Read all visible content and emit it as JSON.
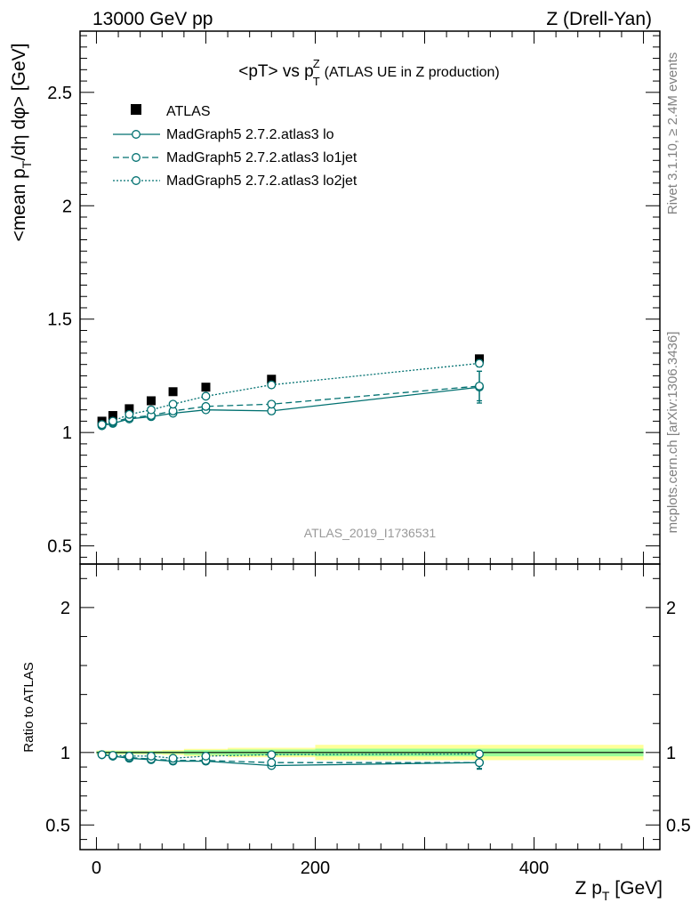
{
  "header": {
    "left": "13000 GeV pp",
    "right": "Z (Drell-Yan)"
  },
  "side": {
    "rivet": "Rivet 3.1.10, ≥ 2.4M events",
    "mcplots": "mcplots.cern.ch [arXiv:1306.3436]"
  },
  "chart_data": {
    "type": "line",
    "title": "<pT> vs p_T^Z (ATLAS UE in Z production)",
    "title_main": "<pT> vs p",
    "title_sup": "Z",
    "title_sub": "T",
    "title_paren": "(ATLAS UE in Z production)",
    "watermark": "ATLAS_2019_I1736531",
    "ylabel": "<mean p_T/dη dφ> [GeV]",
    "ylabel_pre": "<mean p",
    "ylabel_sub": "T",
    "ylabel_post": "/dη dφ> [GeV]",
    "xlabel": "Z p_T [GeV]",
    "xlabel_pre": "Z p",
    "xlabel_sub": "T",
    "xlabel_post": " [GeV]",
    "ratio_ylabel": "Ratio to ATLAS",
    "xlim": [
      -15,
      515
    ],
    "ylim": [
      0.42,
      2.77
    ],
    "ratio_ylim": [
      0.33,
      2.3
    ],
    "x_ticks": [
      0,
      200,
      400
    ],
    "x_tick_labels": [
      "0",
      "200",
      "400"
    ],
    "y_ticks": [
      0.5,
      1,
      1.5,
      2,
      2.5
    ],
    "y_tick_labels": [
      "0.5",
      "1",
      "1.5",
      "2",
      "2.5"
    ],
    "ratio_ticks": [
      0.5,
      1,
      2
    ],
    "ratio_tick_labels": [
      "0.5",
      "1",
      "2"
    ],
    "legend_position": "top-left",
    "data": {
      "name": "ATLAS",
      "color": "#000000",
      "x": [
        5,
        15,
        30,
        50,
        70,
        100,
        160,
        350
      ],
      "y": [
        1.05,
        1.075,
        1.105,
        1.14,
        1.18,
        1.2,
        1.235,
        1.325
      ],
      "bins": [
        [
          0,
          10
        ],
        [
          10,
          20
        ],
        [
          20,
          40
        ],
        [
          40,
          60
        ],
        [
          60,
          80
        ],
        [
          80,
          120
        ],
        [
          120,
          200
        ],
        [
          200,
          500
        ]
      ],
      "band_inner": [
        0.01,
        0.01,
        0.01,
        0.01,
        0.01,
        0.02,
        0.025,
        0.035
      ],
      "band_outer": [
        0.015,
        0.015,
        0.015,
        0.015,
        0.02,
        0.03,
        0.04,
        0.07
      ]
    },
    "series": [
      {
        "name": "MadGraph5 2.7.2.atlas3 lo",
        "color": "#007070",
        "dash": "",
        "x": [
          5,
          15,
          30,
          50,
          70,
          100,
          160,
          350
        ],
        "y": [
          1.03,
          1.04,
          1.06,
          1.07,
          1.085,
          1.1,
          1.095,
          1.2
        ],
        "err": [
          0,
          0,
          0,
          0,
          0,
          0,
          0,
          0.07
        ],
        "ratio": [
          0.985,
          0.975,
          0.96,
          0.95,
          0.94,
          0.94,
          0.91,
          0.93
        ],
        "ratio_err": [
          0,
          0,
          0,
          0,
          0,
          0,
          0.015,
          0.04
        ]
      },
      {
        "name": "MadGraph5 2.7.2.atlas3 lo1jet",
        "color": "#007070",
        "dash": "7,4",
        "x": [
          5,
          15,
          30,
          50,
          70,
          100,
          160,
          350
        ],
        "y": [
          1.03,
          1.045,
          1.065,
          1.075,
          1.095,
          1.115,
          1.125,
          1.205
        ],
        "err": [
          0,
          0,
          0,
          0,
          0,
          0,
          0,
          0.065
        ],
        "ratio": [
          0.985,
          0.975,
          0.965,
          0.955,
          0.945,
          0.945,
          0.93,
          0.93
        ],
        "ratio_err": [
          0,
          0,
          0,
          0,
          0,
          0,
          0.015,
          0.045
        ]
      },
      {
        "name": "MadGraph5 2.7.2.atlas3 lo2jet",
        "color": "#007070",
        "dash": "2,2",
        "x": [
          5,
          15,
          30,
          50,
          70,
          100,
          160,
          350
        ],
        "y": [
          1.035,
          1.05,
          1.08,
          1.1,
          1.125,
          1.16,
          1.21,
          1.305
        ],
        "err": [
          0,
          0,
          0,
          0,
          0,
          0,
          0,
          0.015
        ],
        "ratio": [
          0.985,
          0.98,
          0.975,
          0.975,
          0.96,
          0.975,
          0.985,
          0.99
        ],
        "ratio_err": [
          0,
          0,
          0,
          0,
          0,
          0,
          0.005,
          0.01
        ]
      }
    ]
  }
}
